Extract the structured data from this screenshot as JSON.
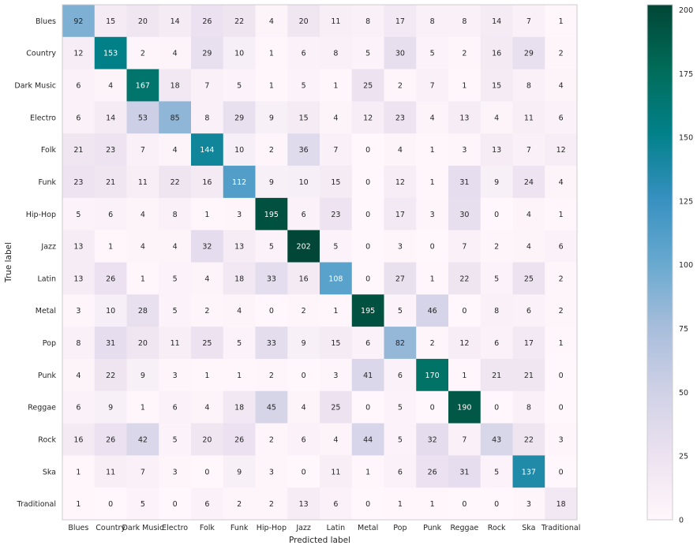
{
  "chart_data": {
    "type": "heatmap",
    "title": "",
    "xlabel": "Predicted label",
    "ylabel": "True label",
    "x_categories": [
      "Blues",
      "Country",
      "Dark Music",
      "Electro",
      "Folk",
      "Funk",
      "Hip-Hop",
      "Jazz",
      "Latin",
      "Metal",
      "Pop",
      "Punk",
      "Reggae",
      "Rock",
      "Ska",
      "Traditional"
    ],
    "y_categories": [
      "Blues",
      "Country",
      "Dark Music",
      "Electro",
      "Folk",
      "Funk",
      "Hip-Hop",
      "Jazz",
      "Latin",
      "Metal",
      "Pop",
      "Punk",
      "Reggae",
      "Rock",
      "Ska",
      "Traditional"
    ],
    "values": [
      [
        92,
        15,
        20,
        14,
        26,
        22,
        4,
        20,
        11,
        8,
        17,
        8,
        8,
        14,
        7,
        1
      ],
      [
        12,
        153,
        2,
        4,
        29,
        10,
        1,
        6,
        8,
        5,
        30,
        5,
        2,
        16,
        29,
        2
      ],
      [
        6,
        4,
        167,
        18,
        7,
        5,
        1,
        5,
        1,
        25,
        2,
        7,
        1,
        15,
        8,
        4
      ],
      [
        6,
        14,
        53,
        85,
        8,
        29,
        9,
        15,
        4,
        12,
        23,
        4,
        13,
        4,
        11,
        6
      ],
      [
        21,
        23,
        7,
        4,
        144,
        10,
        2,
        36,
        7,
        0,
        4,
        1,
        3,
        13,
        7,
        12
      ],
      [
        23,
        21,
        11,
        22,
        16,
        112,
        9,
        10,
        15,
        0,
        12,
        1,
        31,
        9,
        24,
        4
      ],
      [
        5,
        6,
        4,
        8,
        1,
        3,
        195,
        6,
        23,
        0,
        17,
        3,
        30,
        0,
        4,
        1
      ],
      [
        13,
        1,
        4,
        4,
        32,
        13,
        5,
        202,
        5,
        0,
        3,
        0,
        7,
        2,
        4,
        6
      ],
      [
        13,
        26,
        1,
        5,
        4,
        18,
        33,
        16,
        108,
        0,
        27,
        1,
        22,
        5,
        25,
        2
      ],
      [
        3,
        10,
        28,
        5,
        2,
        4,
        0,
        2,
        1,
        195,
        5,
        46,
        0,
        8,
        6,
        2
      ],
      [
        8,
        31,
        20,
        11,
        25,
        5,
        33,
        9,
        15,
        6,
        82,
        2,
        12,
        6,
        17,
        1
      ],
      [
        4,
        22,
        9,
        3,
        1,
        1,
        2,
        0,
        3,
        41,
        6,
        170,
        1,
        21,
        21,
        0
      ],
      [
        6,
        9,
        1,
        6,
        4,
        18,
        45,
        4,
        25,
        0,
        5,
        0,
        190,
        0,
        8,
        0
      ],
      [
        16,
        26,
        42,
        5,
        20,
        26,
        2,
        6,
        4,
        44,
        5,
        32,
        7,
        43,
        22,
        3
      ],
      [
        1,
        11,
        7,
        3,
        0,
        9,
        3,
        0,
        11,
        1,
        6,
        26,
        31,
        5,
        137,
        0
      ],
      [
        1,
        0,
        5,
        0,
        6,
        2,
        2,
        13,
        6,
        0,
        1,
        1,
        0,
        0,
        3,
        18
      ]
    ],
    "colormap": "PuBuGn",
    "colorbar": {
      "min": 0,
      "max": 202,
      "ticks": [
        0,
        25,
        50,
        75,
        100,
        125,
        150,
        175,
        200
      ],
      "tick_labels": [
        "0",
        "25",
        "50",
        "75",
        "100",
        "125",
        "150",
        "175",
        "200"
      ]
    },
    "grid": false,
    "legend": "colorbar-right",
    "text_color_dark": "#262626",
    "text_color_light": "#ffffff",
    "text_switch_threshold": 101
  }
}
